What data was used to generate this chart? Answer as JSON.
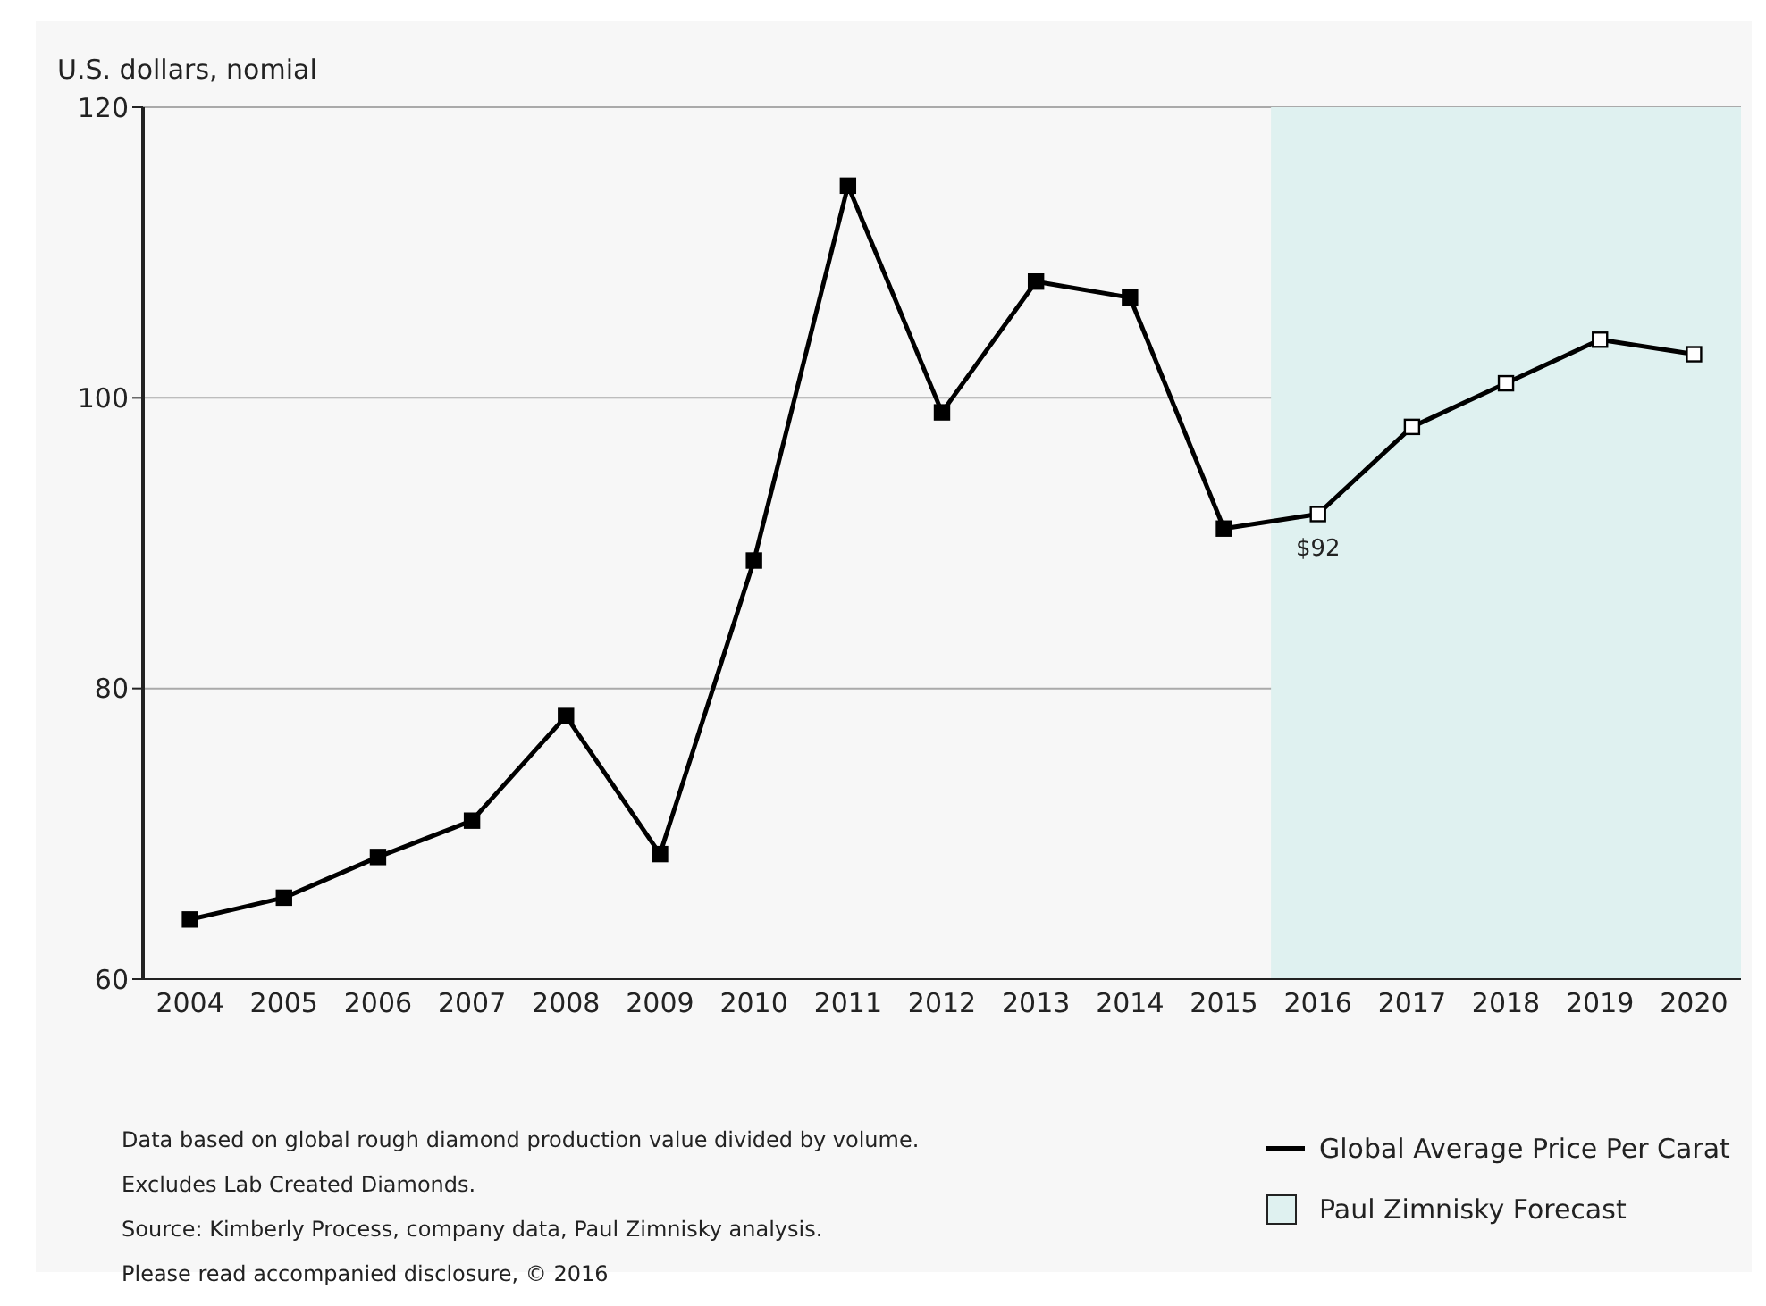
{
  "chart_data": {
    "type": "line",
    "ylabel": "U.S. dollars, nomial",
    "categories": [
      "2004",
      "2005",
      "2006",
      "2007",
      "2008",
      "2009",
      "2010",
      "2011",
      "2012",
      "2013",
      "2014",
      "2015",
      "2016",
      "2017",
      "2018",
      "2019",
      "2020"
    ],
    "series": [
      {
        "name": "Global Average Price Per Carat",
        "color": "#000000",
        "values": [
          64.1,
          65.6,
          68.4,
          70.9,
          78.1,
          68.6,
          88.8,
          114.6,
          99,
          108,
          106.9,
          91,
          92,
          98,
          101,
          104,
          103
        ]
      }
    ],
    "ylim": [
      60,
      120
    ],
    "yticks": [
      60,
      80,
      100,
      120
    ],
    "grid": "y",
    "marker": "square",
    "legend": "bottom right",
    "bands": [
      {
        "axis": "x",
        "from": "2016",
        "to": "2020",
        "label": "Paul Zimnisky Forecast",
        "color": "#dff1f0"
      }
    ],
    "annotations": [
      {
        "text": "$92",
        "x": "2016",
        "y": 92
      },
      "Data based on global rough diamond production value divided by volume.",
      "Excludes Lab Created Diamonds.",
      "Source: Kimberly Process, company data, Paul Zimnisky analysis.",
      "Please read accompanied disclosure, © 2016"
    ]
  }
}
